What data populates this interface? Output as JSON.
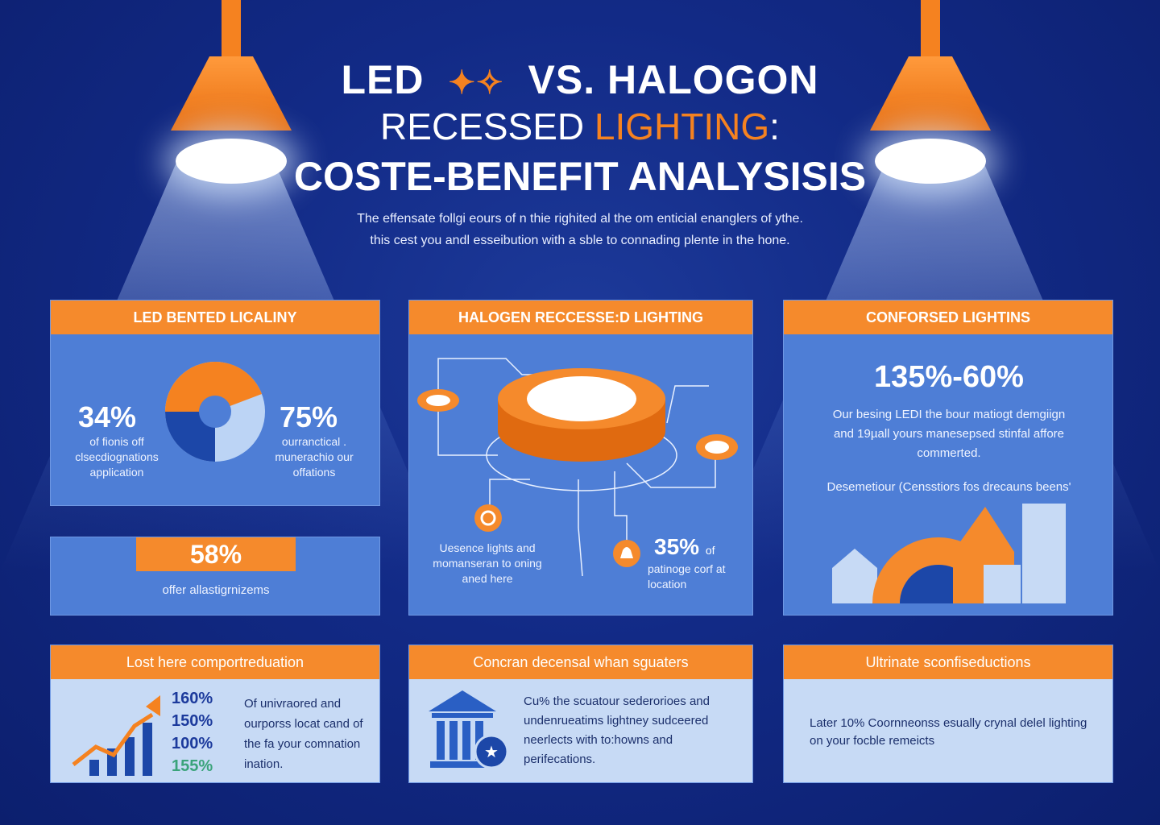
{
  "header": {
    "title_line1_left": "LED",
    "title_line1_right": "VS. HALOGON",
    "title_line2_a": "RECESSED ",
    "title_line2_b": "LIGHTING",
    "title_line2_c": ":",
    "title_line3": "COSTE-BENEFIT ANALYSISIS",
    "intro_line1": "The effensate follgi eours of n thie righited al the om enticial enanglers of ythe.",
    "intro_line2": "this cest you andl esseibution with a sble to connading plente in the hone."
  },
  "panels": {
    "led": {
      "title": "LED BENTED LICALINY",
      "left_pct": "34%",
      "left_text": "of fionis off clsecdiognations application",
      "right_pct": "75%",
      "right_text": "ourranctical . munerachio our offations"
    },
    "led_stat": {
      "pct": "58%",
      "text": "offer allastigrnizems"
    },
    "halogen": {
      "title": "HALOGEN RECCESSE:D LIGHTING",
      "left_text": "Uesence lights and momanseran to oning aned here",
      "pct": "35%",
      "pct_suffix": "of",
      "right_text": "patinoge corf at location"
    },
    "confused": {
      "title": "CONFORSED LIGHTINS",
      "range": "135%-60%",
      "text": "Our besing LEDI the bour matiogt demgiign and 19µall yours manesepsed stinfal affore commerted.",
      "caption": "Desemetiour (Censstiors fos drecauns beens'"
    },
    "lost": {
      "title": "Lost here comportreduation",
      "pcts": [
        "160%",
        "150%",
        "100%",
        "155%"
      ],
      "text": "Of univraored and ourporss locat cand of the fa your comnation ination."
    },
    "concran": {
      "title": "Concran decensal whan sguaters",
      "text": "Cu% the scuatour sederorioes and undenrueatims lightney sudceered neerlects with to:howns and perifecations."
    },
    "ultimate": {
      "title": "Ultrinate sconfiseductions",
      "text": "Later 10% Coornneonss esually crynal delel lighting on your focble remeicts"
    }
  },
  "colors": {
    "background": "#122a86",
    "accent": "#f58220",
    "panel": "#4e7ed6",
    "panel_light": "#c7daf5"
  }
}
